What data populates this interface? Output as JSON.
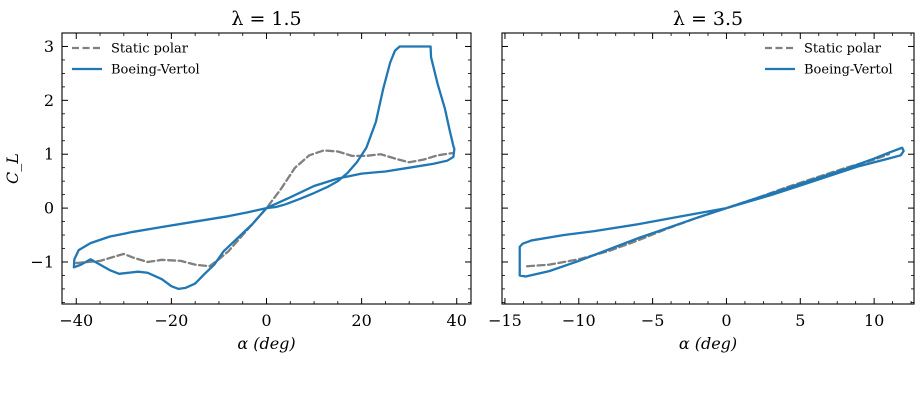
{
  "chart_data": [
    {
      "type": "line",
      "title": "λ = 1.5",
      "xlabel": "α (deg)",
      "ylabel": "C_L",
      "xlim": [
        -43,
        43
      ],
      "ylim": [
        -1.78,
        3.25
      ],
      "xticks": [
        -40,
        -20,
        0,
        20,
        40
      ],
      "xtick_labels": [
        "−40",
        "−20",
        "0",
        "20",
        "40"
      ],
      "yticks": [
        -1,
        0,
        1,
        2,
        3
      ],
      "ytick_labels": [
        "−1",
        "0",
        "1",
        "2",
        "3"
      ],
      "grid": false,
      "legend": "top-left",
      "series": [
        {
          "name": "Static polar",
          "style": "dashed",
          "color": "#808080",
          "x": [
            -40,
            -35,
            -30,
            -28,
            -25,
            -22,
            -18,
            -15,
            -12,
            -10,
            -8,
            -5,
            0,
            3,
            6,
            9,
            12,
            15,
            18,
            21,
            24,
            27,
            30,
            33,
            36,
            39
          ],
          "y": [
            -1.02,
            -0.98,
            -0.85,
            -0.92,
            -1.0,
            -0.96,
            -0.98,
            -1.05,
            -1.08,
            -0.95,
            -0.8,
            -0.5,
            0.0,
            0.35,
            0.75,
            0.98,
            1.07,
            1.05,
            0.97,
            0.97,
            1.0,
            0.92,
            0.85,
            0.9,
            0.98,
            1.02
          ]
        },
        {
          "name": "Boeing-Vertol",
          "style": "solid",
          "color": "#1f77b4",
          "x": [
            0,
            5,
            10,
            15,
            20,
            25,
            30,
            35,
            38,
            39.3,
            39.5,
            39.3,
            38.5,
            37.5,
            36.0,
            34.6,
            34.5,
            33.0,
            30.0,
            28.0,
            27.0,
            26.0,
            24.5,
            23.0,
            21.0,
            19.0,
            17.0,
            15.0,
            13.0,
            10.0,
            7.0,
            4.0,
            2.0,
            0.0,
            -3,
            -6,
            -9,
            -11,
            -13,
            -15,
            -17,
            -18.5,
            -20,
            -22,
            -25,
            -27,
            -29,
            -31,
            -33,
            -35,
            -37,
            -39,
            -40.5,
            -40.4,
            -39.5,
            -37,
            -33,
            -28,
            -22,
            -15,
            -8,
            -4,
            -2,
            0
          ],
          "y": [
            0.0,
            0.2,
            0.41,
            0.55,
            0.64,
            0.68,
            0.75,
            0.82,
            0.88,
            0.95,
            1.1,
            1.15,
            1.45,
            1.85,
            2.3,
            2.8,
            3.0,
            3.0,
            3.0,
            3.0,
            2.92,
            2.7,
            2.2,
            1.6,
            1.12,
            0.85,
            0.65,
            0.5,
            0.4,
            0.28,
            0.17,
            0.07,
            0.02,
            0.0,
            -0.3,
            -0.55,
            -0.8,
            -1.05,
            -1.22,
            -1.4,
            -1.48,
            -1.5,
            -1.45,
            -1.32,
            -1.2,
            -1.18,
            -1.2,
            -1.22,
            -1.15,
            -1.05,
            -0.95,
            -1.05,
            -1.1,
            -0.95,
            -0.78,
            -0.65,
            -0.53,
            -0.44,
            -0.35,
            -0.25,
            -0.15,
            -0.08,
            -0.04,
            0.0
          ]
        }
      ]
    },
    {
      "type": "line",
      "title": "λ = 3.5",
      "xlabel": "α (deg)",
      "ylabel": "",
      "xlim": [
        -15.2,
        12.7
      ],
      "ylim": [
        -1.78,
        3.25
      ],
      "xticks": [
        -15,
        -10,
        -5,
        0,
        5,
        10
      ],
      "xtick_labels": [
        "−15",
        "−10",
        "−5",
        "0",
        "5",
        "10"
      ],
      "yticks": [
        -1,
        0,
        1,
        2,
        3
      ],
      "ytick_labels": [],
      "grid": false,
      "legend": "top-right",
      "series": [
        {
          "name": "Static polar",
          "style": "dashed",
          "color": "#808080",
          "x": [
            -13.5,
            -12,
            -10,
            -8,
            -6,
            -4,
            -2,
            0,
            2,
            4,
            6,
            8,
            10,
            11
          ],
          "y": [
            -1.08,
            -1.05,
            -0.95,
            -0.8,
            -0.6,
            -0.38,
            -0.18,
            0.0,
            0.18,
            0.38,
            0.56,
            0.74,
            0.9,
            1.0
          ]
        },
        {
          "name": "Boeing-Vertol",
          "style": "solid",
          "color": "#1f77b4",
          "x": [
            0,
            2,
            4,
            6,
            8,
            10,
            11.2,
            11.9,
            12.0,
            11.8,
            11.0,
            9.0,
            7.0,
            5.0,
            3.0,
            1.0,
            0.0,
            -2,
            -4,
            -6,
            -8,
            -10,
            -12,
            -13.6,
            -14.0,
            -14.0,
            -13.8,
            -13.2,
            -11,
            -9,
            -6,
            -3,
            0
          ],
          "y": [
            0.0,
            0.18,
            0.36,
            0.54,
            0.72,
            0.92,
            1.05,
            1.12,
            1.06,
            0.98,
            0.92,
            0.78,
            0.6,
            0.42,
            0.24,
            0.08,
            0.0,
            -0.18,
            -0.37,
            -0.56,
            -0.77,
            -0.98,
            -1.17,
            -1.27,
            -1.25,
            -0.72,
            -0.66,
            -0.6,
            -0.5,
            -0.43,
            -0.3,
            -0.15,
            0.0
          ]
        }
      ]
    }
  ]
}
